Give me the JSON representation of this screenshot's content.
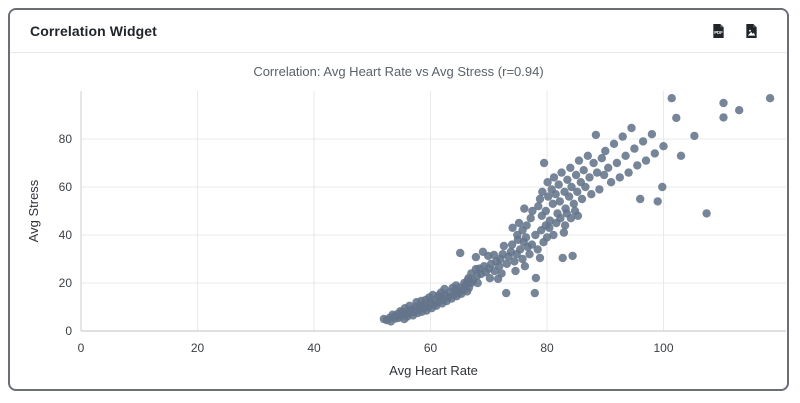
{
  "header": {
    "title": "Correlation Widget",
    "export_pdf_label": "Export PDF",
    "export_image_label": "Export image"
  },
  "colors": {
    "marker": "#64748b",
    "grid": "#e9e9e9",
    "axis_line": "#c9cdd1",
    "tick_text": "#3b4045",
    "title_text": "#5a626b",
    "icon": "#212529",
    "card_border": "#6a6f75"
  },
  "chart_data": {
    "type": "scatter",
    "title": "Correlation: Avg Heart Rate vs Avg Stress (r=0.94)",
    "xlabel": "Avg Heart Rate",
    "ylabel": "Avg Stress",
    "xlim": [
      0,
      121
    ],
    "ylim": [
      0,
      100
    ],
    "xticks": [
      0,
      20,
      40,
      60,
      80,
      100
    ],
    "yticks": [
      0,
      20,
      40,
      60,
      80
    ],
    "grid": true,
    "legend": false,
    "marker_color": "#64748b",
    "marker_radius": 4.2,
    "points": [
      [
        52,
        5
      ],
      [
        52.5,
        4.5
      ],
      [
        53,
        5.5
      ],
      [
        53.2,
        4
      ],
      [
        53.8,
        6
      ],
      [
        54,
        5.2
      ],
      [
        54.3,
        7
      ],
      [
        54.6,
        5.5
      ],
      [
        55,
        6.5
      ],
      [
        55.2,
        8
      ],
      [
        55.5,
        5
      ],
      [
        55.8,
        7
      ],
      [
        56,
        6
      ],
      [
        56.2,
        8.5
      ],
      [
        56.5,
        7.5
      ],
      [
        56.8,
        9
      ],
      [
        57,
        6.5
      ],
      [
        57.2,
        8
      ],
      [
        57.5,
        10
      ],
      [
        57.8,
        7.5
      ],
      [
        58,
        9
      ],
      [
        58.2,
        10.5
      ],
      [
        58.5,
        8
      ],
      [
        58.8,
        9.5
      ],
      [
        59,
        11
      ],
      [
        59.3,
        8.5
      ],
      [
        59.6,
        10
      ],
      [
        60,
        12
      ],
      [
        60.2,
        9.5
      ],
      [
        60.5,
        11
      ],
      [
        60.8,
        13
      ],
      [
        61,
        10.5
      ],
      [
        61.3,
        12
      ],
      [
        61.6,
        14
      ],
      [
        62,
        11.5
      ],
      [
        62.2,
        13
      ],
      [
        62.5,
        15
      ],
      [
        62.8,
        12.5
      ],
      [
        63,
        14
      ],
      [
        63.3,
        16
      ],
      [
        63.6,
        13.5
      ],
      [
        64,
        15
      ],
      [
        64.2,
        17
      ],
      [
        64.5,
        14.5
      ],
      [
        64.8,
        16
      ],
      [
        65,
        18
      ],
      [
        65.3,
        15.5
      ],
      [
        65.6,
        17
      ],
      [
        66,
        19
      ],
      [
        66.3,
        16.5
      ],
      [
        66.6,
        18
      ],
      [
        67,
        20
      ],
      [
        55.6,
        9.5
      ],
      [
        57.6,
        12
      ],
      [
        59.8,
        14
      ],
      [
        61.8,
        16
      ],
      [
        63.8,
        18
      ],
      [
        65.8,
        20
      ],
      [
        54.8,
        8.2
      ],
      [
        58.4,
        12.5
      ],
      [
        60.4,
        15
      ],
      [
        62.4,
        17.5
      ],
      [
        53.5,
        6.8
      ],
      [
        56.4,
        10.5
      ],
      [
        59.2,
        13
      ],
      [
        61.4,
        14.8
      ],
      [
        64.4,
        19
      ],
      [
        66.4,
        21
      ],
      [
        66.5,
        22
      ],
      [
        67,
        24
      ],
      [
        67.3,
        21
      ],
      [
        67.8,
        25.8
      ],
      [
        68,
        23
      ],
      [
        68.4,
        26
      ],
      [
        68.7,
        23.8
      ],
      [
        69,
        33
      ],
      [
        69.2,
        27
      ],
      [
        69.5,
        24.5
      ],
      [
        69.9,
        31.3
      ],
      [
        70,
        26
      ],
      [
        70.4,
        28
      ],
      [
        70.9,
        31.7
      ],
      [
        71,
        25
      ],
      [
        71.3,
        29
      ],
      [
        71.8,
        27
      ],
      [
        72,
        30
      ],
      [
        72.4,
        32
      ],
      [
        72.6,
        35.4
      ],
      [
        73,
        15.8
      ],
      [
        73.1,
        28
      ],
      [
        73.4,
        31
      ],
      [
        73.8,
        33
      ],
      [
        74,
        36
      ],
      [
        74.4,
        29
      ],
      [
        74.8,
        32
      ],
      [
        75,
        38
      ],
      [
        75.4,
        34
      ],
      [
        75.8,
        30
      ],
      [
        76,
        37
      ],
      [
        76.4,
        39
      ],
      [
        76.7,
        35
      ],
      [
        77,
        32
      ],
      [
        77.4,
        36
      ],
      [
        77.9,
        15.8
      ],
      [
        78,
        40
      ],
      [
        78.1,
        22.1
      ],
      [
        78.4,
        34
      ],
      [
        78.8,
        30.4
      ],
      [
        79,
        42
      ],
      [
        79.4,
        37
      ],
      [
        79.8,
        44
      ],
      [
        80,
        39
      ],
      [
        65.1,
        32.5
      ],
      [
        67.8,
        30.8
      ],
      [
        68.1,
        20
      ],
      [
        70.2,
        22
      ],
      [
        71.6,
        21.7
      ],
      [
        74.6,
        25
      ],
      [
        76.2,
        27
      ],
      [
        72.2,
        24
      ],
      [
        75.8,
        42
      ],
      [
        76.5,
        44
      ],
      [
        77.2,
        47
      ],
      [
        77.5,
        50
      ],
      [
        76.1,
        51
      ],
      [
        74.9,
        40
      ],
      [
        75.2,
        45
      ],
      [
        74.1,
        43
      ],
      [
        78.5,
        52
      ],
      [
        78.8,
        55
      ],
      [
        79.1,
        48
      ],
      [
        79.2,
        58
      ],
      [
        79.5,
        70
      ],
      [
        79.8,
        50
      ],
      [
        80.1,
        62
      ],
      [
        80.2,
        56
      ],
      [
        80.5,
        46
      ],
      [
        80.8,
        59
      ],
      [
        81,
        53
      ],
      [
        81.2,
        64
      ],
      [
        81.5,
        57
      ],
      [
        81.8,
        49
      ],
      [
        82,
        61
      ],
      [
        82.2,
        54
      ],
      [
        82.5,
        66
      ],
      [
        82.7,
        30.4
      ],
      [
        83,
        58
      ],
      [
        83.2,
        51
      ],
      [
        83.5,
        63
      ],
      [
        83.8,
        56
      ],
      [
        84,
        68
      ],
      [
        84.2,
        60
      ],
      [
        84.4,
        31.3
      ],
      [
        84.6,
        53
      ],
      [
        85,
        65
      ],
      [
        85.2,
        58
      ],
      [
        85.5,
        71
      ],
      [
        85.8,
        62
      ],
      [
        86,
        55
      ],
      [
        86.3,
        67
      ],
      [
        86.6,
        60
      ],
      [
        87,
        73
      ],
      [
        87.3,
        64
      ],
      [
        87.6,
        57
      ],
      [
        88,
        70
      ],
      [
        88.4,
        81.7
      ],
      [
        88.6,
        66
      ],
      [
        89,
        59
      ],
      [
        89.4,
        72
      ],
      [
        89.8,
        65
      ],
      [
        80.4,
        43
      ],
      [
        81.6,
        45
      ],
      [
        82.3,
        47
      ],
      [
        83.1,
        44
      ],
      [
        84.1,
        47
      ],
      [
        82.9,
        41
      ],
      [
        81.1,
        40
      ],
      [
        83.4,
        49
      ],
      [
        84.8,
        50
      ],
      [
        85.3,
        48
      ],
      [
        90,
        75
      ],
      [
        90.5,
        68
      ],
      [
        91,
        62
      ],
      [
        91.5,
        78
      ],
      [
        92,
        70
      ],
      [
        92.5,
        64
      ],
      [
        93,
        81
      ],
      [
        93.5,
        73
      ],
      [
        94,
        66
      ],
      [
        94.5,
        84.6
      ],
      [
        95,
        76
      ],
      [
        95.5,
        69
      ],
      [
        96,
        55
      ],
      [
        96.5,
        79
      ],
      [
        97,
        71
      ],
      [
        98,
        82
      ],
      [
        98.5,
        74
      ],
      [
        99,
        54
      ],
      [
        99.8,
        60
      ],
      [
        100,
        77
      ],
      [
        101.4,
        97
      ],
      [
        102.2,
        88.8
      ],
      [
        103,
        73
      ],
      [
        105.3,
        81.3
      ],
      [
        107.4,
        49
      ],
      [
        110.3,
        95
      ],
      [
        110.3,
        89
      ],
      [
        113,
        92
      ],
      [
        118.3,
        97
      ]
    ]
  }
}
